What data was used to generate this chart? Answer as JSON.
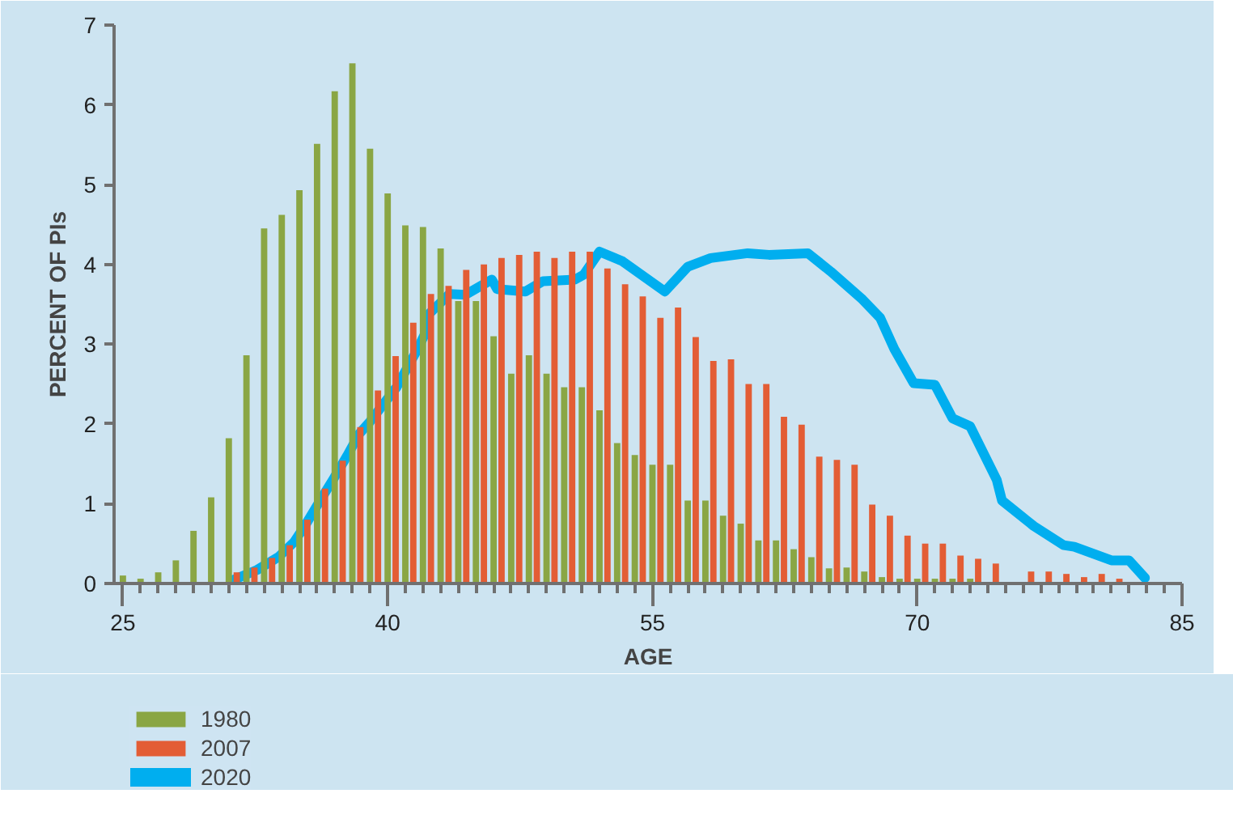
{
  "chart_data": {
    "type": "bar",
    "xlabel": "AGE",
    "ylabel": "PERCENT OF PIs",
    "x": [
      25,
      26,
      27,
      28,
      29,
      30,
      31,
      32,
      33,
      34,
      35,
      36,
      37,
      38,
      39,
      40,
      41,
      42,
      43,
      44,
      45,
      46,
      47,
      48,
      49,
      50,
      51,
      52,
      53,
      54,
      55,
      56,
      57,
      58,
      59,
      60,
      61,
      62,
      63,
      64,
      65,
      66,
      67,
      68,
      69,
      70,
      71,
      72,
      73,
      74,
      75,
      76,
      77,
      78,
      79,
      80,
      81
    ],
    "series": [
      {
        "name": "1980",
        "color": "#8aa644",
        "values": [
          0.1,
          0.06,
          0.14,
          0.29,
          0.66,
          1.08,
          1.82,
          2.86,
          4.45,
          4.62,
          4.93,
          5.51,
          6.17,
          6.52,
          5.45,
          4.89,
          4.49,
          4.47,
          4.2,
          3.54,
          3.54,
          3.1,
          2.63,
          2.86,
          2.63,
          2.46,
          2.46,
          2.17,
          1.76,
          1.61,
          1.49,
          1.49,
          1.04,
          1.04,
          0.85,
          0.75,
          0.54,
          0.54,
          0.43,
          0.33,
          0.19,
          0.2,
          0.15,
          0.08,
          0.06,
          0.06,
          0.06,
          0.06,
          0.06,
          null,
          null,
          null,
          null,
          null,
          null,
          null,
          null
        ]
      },
      {
        "name": "2007",
        "color": "#e35d35",
        "values": [
          null,
          null,
          null,
          null,
          null,
          null,
          0.14,
          0.2,
          0.32,
          0.48,
          0.8,
          1.19,
          1.54,
          1.96,
          2.42,
          2.85,
          3.27,
          3.63,
          3.73,
          3.93,
          4.0,
          4.08,
          4.12,
          4.16,
          4.08,
          4.16,
          4.16,
          3.95,
          3.75,
          3.6,
          3.33,
          3.46,
          3.09,
          2.79,
          2.81,
          2.5,
          2.5,
          2.09,
          1.99,
          1.59,
          1.55,
          1.49,
          0.99,
          0.85,
          0.6,
          0.5,
          0.5,
          0.35,
          0.31,
          0.25,
          null,
          0.15,
          0.15,
          0.12,
          0.08,
          0.12,
          0.06
        ]
      },
      {
        "name": "2020",
        "color": "#00aeef",
        "type": "line",
        "x": [
          31.2,
          32.6,
          33.8,
          34.7,
          35.3,
          36.2,
          36.9,
          37.7,
          38.4,
          39,
          40.5,
          41.7,
          42.2,
          42.3,
          43.5,
          44.4,
          45.9,
          46.2,
          47.8,
          48.8,
          50.6,
          51.1,
          52,
          53.3,
          55.7,
          57,
          58.3,
          60.4,
          61.6,
          63.8,
          65.1,
          66.9,
          67.9,
          68.7,
          69.8,
          71,
          72,
          73,
          74.5,
          74.8,
          76.6,
          78.3,
          78.9,
          81,
          82,
          82.9
        ],
        "values": [
          0.04,
          0.17,
          0.33,
          0.52,
          0.72,
          1.05,
          1.3,
          1.6,
          1.88,
          2.03,
          2.46,
          2.94,
          3.17,
          3.37,
          3.63,
          3.62,
          3.81,
          3.69,
          3.66,
          3.79,
          3.81,
          3.87,
          4.16,
          4.04,
          3.66,
          3.97,
          4.08,
          4.14,
          4.12,
          4.14,
          3.91,
          3.56,
          3.33,
          2.94,
          2.51,
          2.49,
          2.07,
          1.97,
          1.3,
          1.04,
          0.72,
          0.48,
          0.46,
          0.29,
          0.29,
          0.07
        ]
      }
    ],
    "xlim": [
      24.5,
      85
    ],
    "xticks": [
      25,
      40,
      55,
      70,
      85
    ],
    "ylim": [
      0,
      7
    ],
    "yticks": [
      0,
      1,
      2,
      3,
      4,
      5,
      6,
      7
    ],
    "grid": false,
    "legend": "bottom left",
    "line_style": "solid",
    "marker": "none"
  }
}
